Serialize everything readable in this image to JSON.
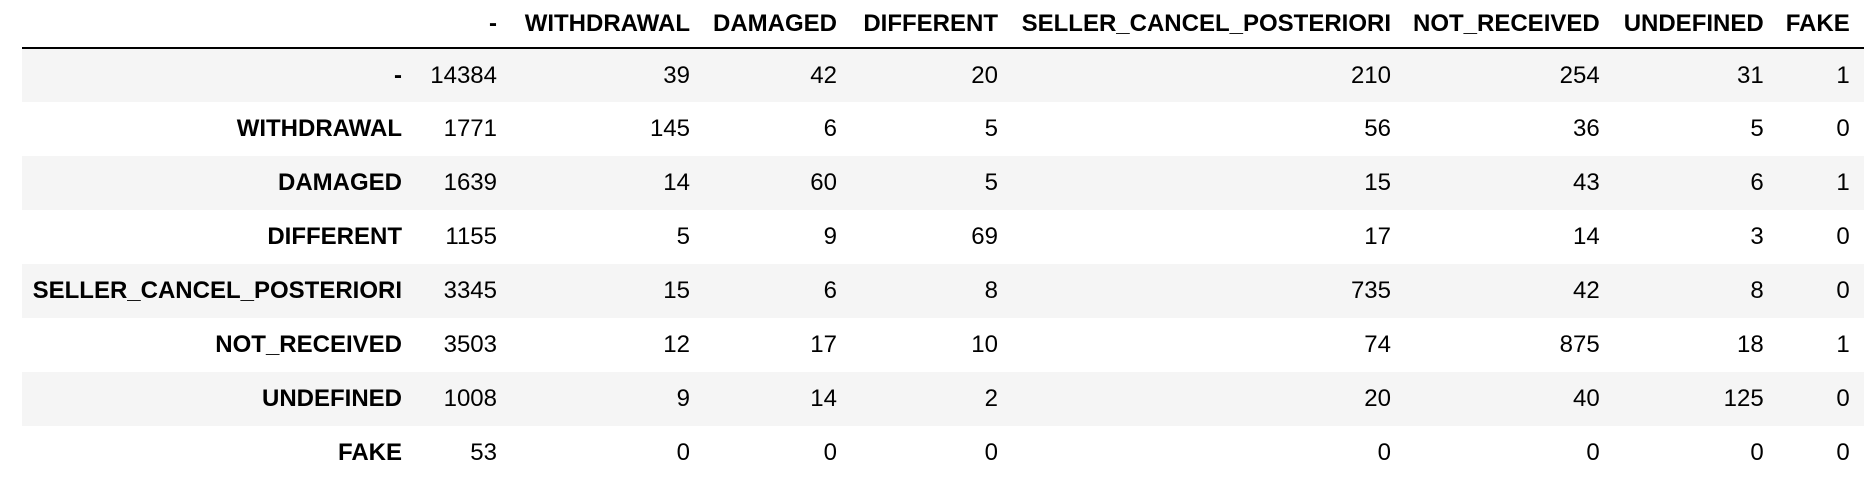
{
  "table": {
    "corner": "",
    "columns": [
      "-",
      "WITHDRAWAL",
      "DAMAGED",
      "DIFFERENT",
      "SELLER_CANCEL_POSTERIORI",
      "NOT_RECEIVED",
      "UNDEFINED",
      "FAKE"
    ],
    "rows": [
      {
        "label": "-",
        "values": [
          "14384",
          "39",
          "42",
          "20",
          "210",
          "254",
          "31",
          "1"
        ]
      },
      {
        "label": "WITHDRAWAL",
        "values": [
          "1771",
          "145",
          "6",
          "5",
          "56",
          "36",
          "5",
          "0"
        ]
      },
      {
        "label": "DAMAGED",
        "values": [
          "1639",
          "14",
          "60",
          "5",
          "15",
          "43",
          "6",
          "1"
        ]
      },
      {
        "label": "DIFFERENT",
        "values": [
          "1155",
          "5",
          "9",
          "69",
          "17",
          "14",
          "3",
          "0"
        ]
      },
      {
        "label": "SELLER_CANCEL_POSTERIORI",
        "values": [
          "3345",
          "15",
          "6",
          "8",
          "735",
          "42",
          "8",
          "0"
        ]
      },
      {
        "label": "NOT_RECEIVED",
        "values": [
          "3503",
          "12",
          "17",
          "10",
          "74",
          "875",
          "18",
          "1"
        ]
      },
      {
        "label": "UNDEFINED",
        "values": [
          "1008",
          "9",
          "14",
          "2",
          "20",
          "40",
          "125",
          "0"
        ]
      },
      {
        "label": "FAKE",
        "values": [
          "53",
          "0",
          "0",
          "0",
          "0",
          "0",
          "0",
          "0"
        ]
      }
    ]
  },
  "colors": {
    "stripe": "#f5f5f5",
    "text": "#000000",
    "rule": "#000000"
  }
}
